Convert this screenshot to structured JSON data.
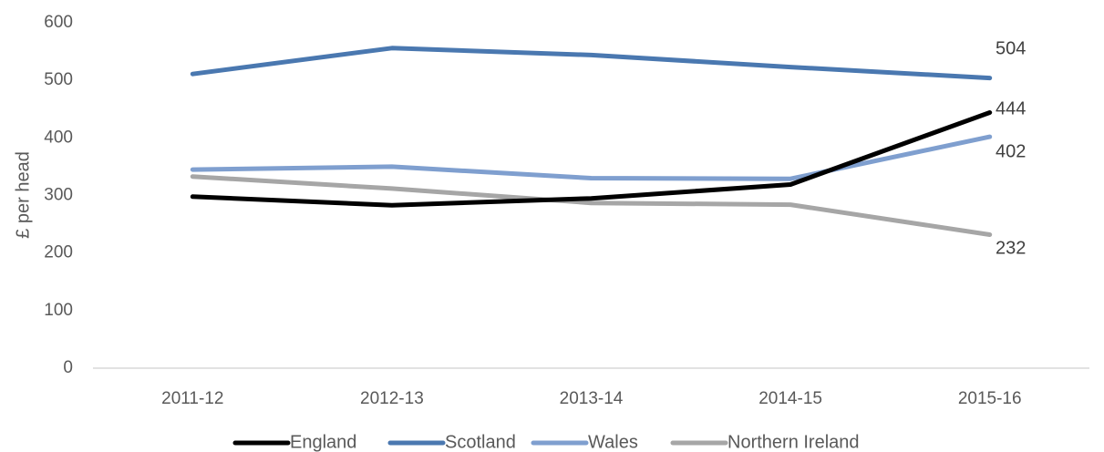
{
  "chart_data": {
    "type": "line",
    "title": "",
    "xlabel": "",
    "ylabel": "£ per head",
    "ylim": [
      0,
      600
    ],
    "yticks": [
      "0",
      "100",
      "200",
      "300",
      "400",
      "500",
      "600"
    ],
    "grid": false,
    "legend_position": "bottom",
    "categories": [
      "2011-12",
      "2012-13",
      "2013-14",
      "2014-15",
      "2015-16"
    ],
    "series": [
      {
        "name": "England",
        "color": "#000000",
        "values": [
          298,
          283,
          295,
          319,
          444
        ],
        "end_label": "444"
      },
      {
        "name": "Scotland",
        "color": "#4a78b0",
        "values": [
          511,
          556,
          544,
          523,
          504
        ],
        "end_label": "504"
      },
      {
        "name": "Wales",
        "color": "#7f9fcf",
        "values": [
          345,
          350,
          330,
          329,
          402
        ],
        "end_label": "402"
      },
      {
        "name": "Northern Ireland",
        "color": "#a6a6a6",
        "values": [
          333,
          312,
          287,
          284,
          232
        ],
        "end_label": "232"
      }
    ]
  }
}
